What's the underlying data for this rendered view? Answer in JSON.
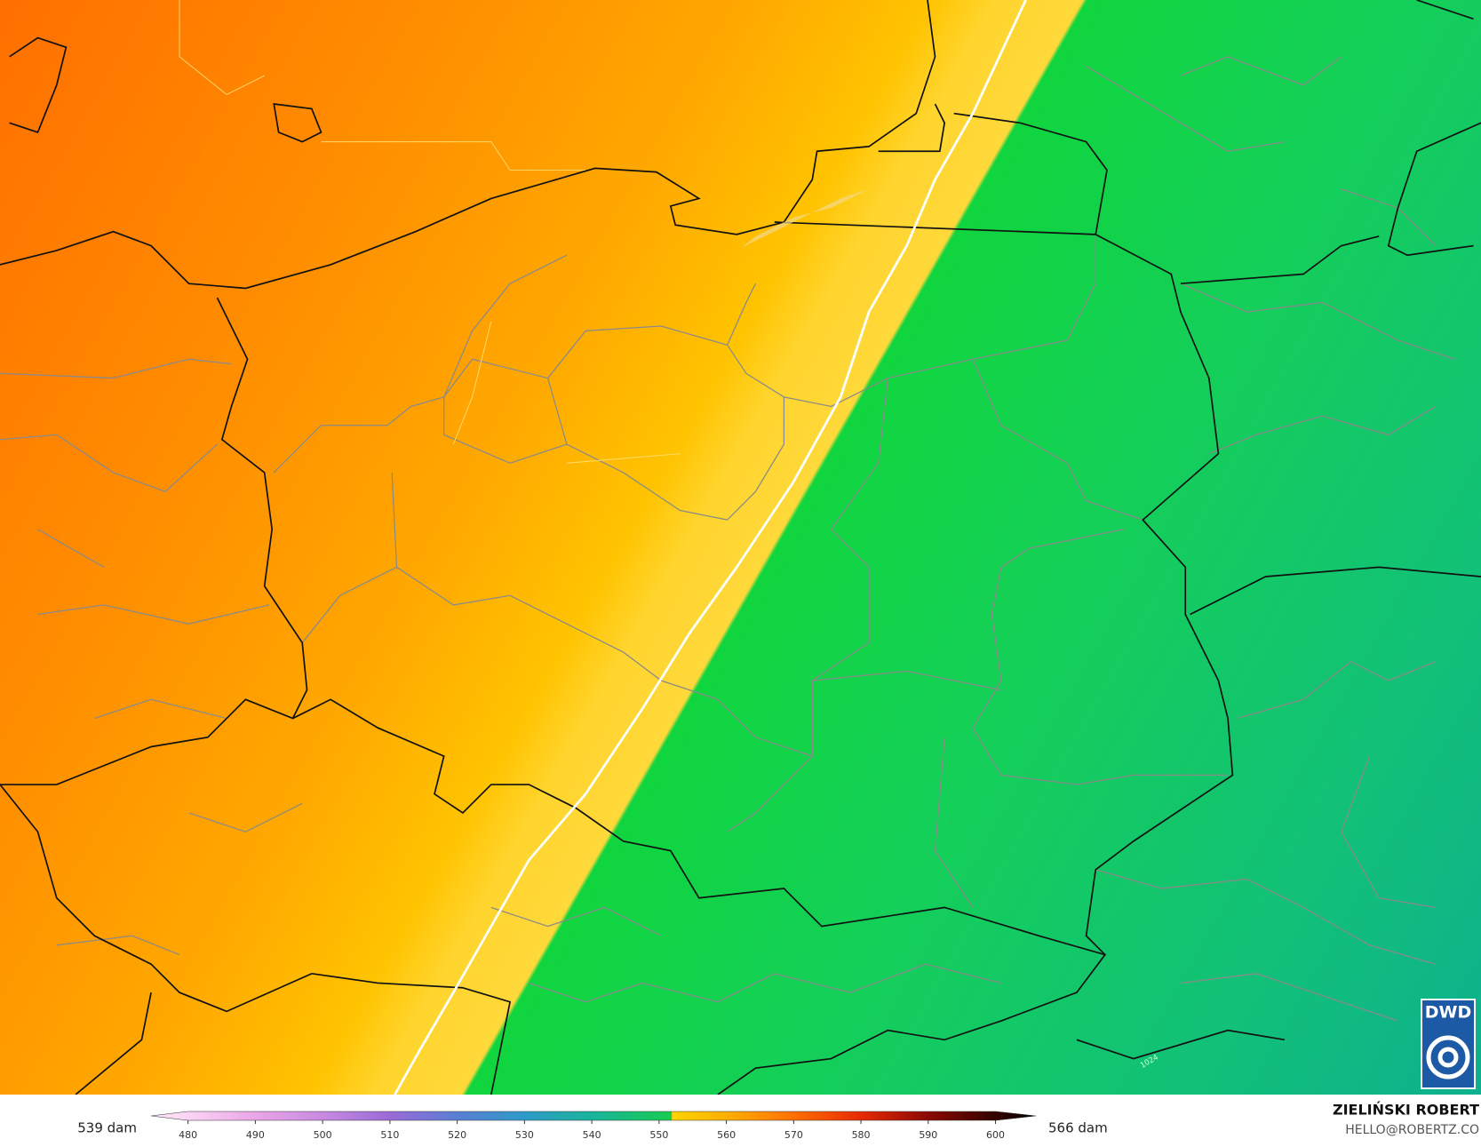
{
  "map": {
    "labels": [
      "1024"
    ]
  },
  "logo": {
    "text": "DWD"
  },
  "colorbar": {
    "ticks": [
      480,
      490,
      500,
      510,
      520,
      530,
      540,
      550,
      560,
      570,
      580,
      590,
      600
    ],
    "lim": [
      474.5,
      606
    ],
    "min_label": "539 dam",
    "max_label": "566 dam"
  },
  "credit": {
    "name": "ZIELIŃSKI ROBERT",
    "email": "HELLO@ROBERTZ.CO"
  }
}
